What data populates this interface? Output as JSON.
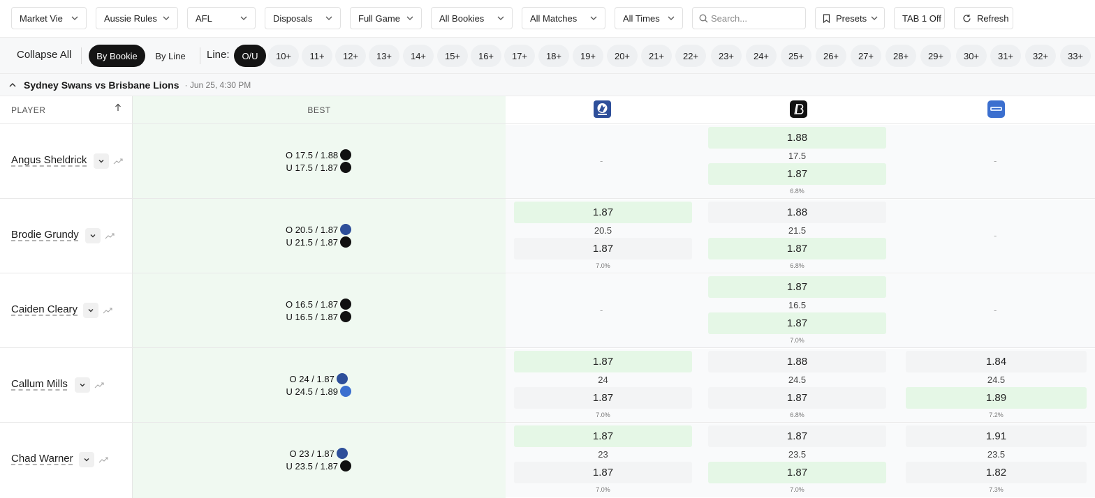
{
  "filters": {
    "market_view": "Market Vie",
    "sport": "Aussie Rules",
    "league": "AFL",
    "market": "Disposals",
    "period": "Full Game",
    "bookies": "All Bookies",
    "matches": "All Matches",
    "times": "All Times",
    "search_placeholder": "Search...",
    "presets": "Presets",
    "tab_off": "TAB 1 Off",
    "refresh": "Refresh"
  },
  "toolbar": {
    "collapse_all": "Collapse All",
    "by_bookie": "By Bookie",
    "by_line": "By Line",
    "line_label": "Line:",
    "lines": [
      "O/U",
      "10+",
      "11+",
      "12+",
      "13+",
      "14+",
      "15+",
      "16+",
      "17+",
      "18+",
      "19+",
      "20+",
      "21+",
      "22+",
      "23+",
      "24+",
      "25+",
      "26+",
      "27+",
      "28+",
      "29+",
      "30+",
      "31+",
      "32+",
      "33+"
    ]
  },
  "match": {
    "title": "Sydney Swans vs Brisbane Lions",
    "time": "· Jun 25, 4:30 PM"
  },
  "table": {
    "player_header": "PLAYER",
    "best_header": "BEST",
    "bookie_icons": [
      "pick-em-logo-icon",
      "pointsbet-logo-icon",
      "sportsbet-logo-icon"
    ],
    "colors": {
      "best_bg": "#f0f9f1",
      "highlight": "#e5f7e6",
      "neutral": "#f3f4f5",
      "active": "#141414"
    },
    "rows": [
      {
        "player": "Angus Sheldrick",
        "best_over": "O 17.5 / 1.88",
        "best_over_bookie": "pointsbet",
        "best_under": "U 17.5 / 1.87",
        "best_under_bookie": "pointsbet",
        "books": [
          {
            "dash": "-"
          },
          {
            "over": "1.88",
            "line": "17.5",
            "under": "1.87",
            "margin": "6.8%",
            "over_best": true,
            "under_best": true
          },
          {
            "dash": "-"
          }
        ]
      },
      {
        "player": "Brodie Grundy",
        "best_over": "O 20.5 / 1.87",
        "best_over_bookie": "pickem",
        "best_under": "U 21.5 / 1.87",
        "best_under_bookie": "pointsbet",
        "books": [
          {
            "over": "1.87",
            "line": "20.5",
            "under": "1.87",
            "margin": "7.0%",
            "over_best": true,
            "under_best": false
          },
          {
            "over": "1.88",
            "line": "21.5",
            "under": "1.87",
            "margin": "6.8%",
            "over_best": false,
            "under_best": true
          },
          {
            "dash": "-"
          }
        ]
      },
      {
        "player": "Caiden Cleary",
        "best_over": "O 16.5 / 1.87",
        "best_over_bookie": "pointsbet",
        "best_under": "U 16.5 / 1.87",
        "best_under_bookie": "pointsbet",
        "books": [
          {
            "dash": "-"
          },
          {
            "over": "1.87",
            "line": "16.5",
            "under": "1.87",
            "margin": "7.0%",
            "over_best": true,
            "under_best": true
          },
          {
            "dash": "-"
          }
        ]
      },
      {
        "player": "Callum Mills",
        "best_over": "O 24 / 1.87",
        "best_over_bookie": "pickem",
        "best_under": "U 24.5 / 1.89",
        "best_under_bookie": "sportsbet",
        "books": [
          {
            "over": "1.87",
            "line": "24",
            "under": "1.87",
            "margin": "7.0%",
            "over_best": true,
            "under_best": false
          },
          {
            "over": "1.88",
            "line": "24.5",
            "under": "1.87",
            "margin": "6.8%",
            "over_best": false,
            "under_best": false
          },
          {
            "over": "1.84",
            "line": "24.5",
            "under": "1.89",
            "margin": "7.2%",
            "over_best": false,
            "under_best": true
          }
        ]
      },
      {
        "player": "Chad Warner",
        "best_over": "O 23 / 1.87",
        "best_over_bookie": "pickem",
        "best_under": "U 23.5 / 1.87",
        "best_under_bookie": "pointsbet",
        "books": [
          {
            "over": "1.87",
            "line": "23",
            "under": "1.87",
            "margin": "7.0%",
            "over_best": true,
            "under_best": false
          },
          {
            "over": "1.87",
            "line": "23.5",
            "under": "1.87",
            "margin": "7.0%",
            "over_best": false,
            "under_best": true
          },
          {
            "over": "1.91",
            "line": "23.5",
            "under": "1.82",
            "margin": "7.3%",
            "over_best": false,
            "under_best": false
          }
        ]
      }
    ]
  }
}
